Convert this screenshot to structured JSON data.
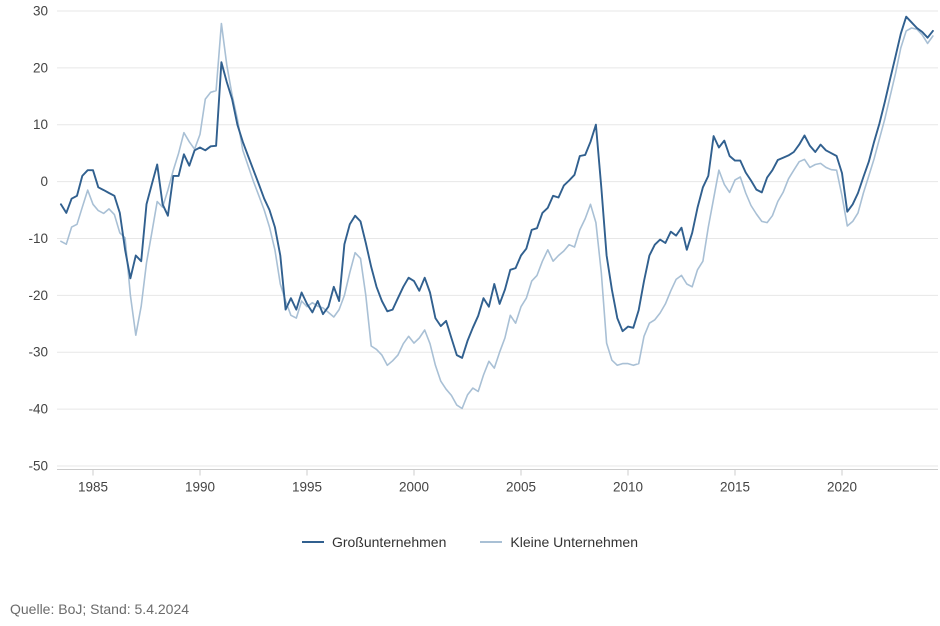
{
  "caption": "Quelle: BoJ; Stand: 5.4.2024",
  "colors": {
    "grid": "#e7e7e7",
    "axis_line": "#cccccc",
    "tick_label": "#444444",
    "legend_text": "#333333",
    "caption_text": "#6b6b6b",
    "background": "#ffffff",
    "series_large": "#31608f",
    "series_small": "#a9c0d5"
  },
  "chart_data": {
    "type": "line",
    "title": "",
    "xlabel": "",
    "ylabel": "",
    "ylim": [
      -50,
      30
    ],
    "xlim": [
      1983.4,
      2024.5
    ],
    "y_ticks": [
      30,
      20,
      10,
      0,
      -10,
      -20,
      -30,
      -40,
      -50
    ],
    "x_ticks": [
      1985,
      1990,
      1995,
      2000,
      2005,
      2010,
      2015,
      2020
    ],
    "grid": "horizontal",
    "legend_position": "bottom-center",
    "x_start": 1983.5,
    "x_step": 0.25,
    "series": [
      {
        "name": "Großunternehmen",
        "color": "#31608f",
        "values": [
          -4,
          -5.5,
          -3,
          -2.5,
          1,
          2,
          2,
          -1,
          -1.5,
          -2,
          -2.5,
          -5.5,
          -12,
          -17,
          -13,
          -14,
          -4,
          -0.5,
          3,
          -4,
          -6,
          1,
          1,
          4.8,
          2.8,
          5.5,
          6,
          5.5,
          6.2,
          6.3,
          21,
          17.5,
          14.5,
          10,
          7,
          4.5,
          2,
          -0.5,
          -3,
          -5,
          -8,
          -13,
          -22.5,
          -20.5,
          -22.5,
          -19.5,
          -21.5,
          -23,
          -21,
          -23.3,
          -22,
          -18.5,
          -21,
          -11,
          -7.5,
          -6,
          -7,
          -10.8,
          -15,
          -18.5,
          -21,
          -22.8,
          -22.5,
          -20.5,
          -18.5,
          -16.9,
          -17.5,
          -19.2,
          -16.9,
          -19.5,
          -24,
          -25.4,
          -24.5,
          -27.5,
          -30.5,
          -31,
          -28,
          -25.7,
          -23.6,
          -20.5,
          -22,
          -18,
          -21.5,
          -19,
          -15.5,
          -15.2,
          -13,
          -11.8,
          -8.5,
          -8.2,
          -5.5,
          -4.6,
          -2.5,
          -2.8,
          -0.7,
          0.2,
          1.2,
          4.5,
          4.7,
          7,
          10,
          -1,
          -13,
          -19,
          -24,
          -26.3,
          -25.5,
          -25.7,
          -22.6,
          -17.5,
          -13,
          -11.1,
          -10.2,
          -10.8,
          -8.8,
          -9.5,
          -8.1,
          -12,
          -9,
          -4.6,
          -1,
          1,
          8,
          6,
          7.2,
          4.5,
          3.7,
          3.7,
          1.6,
          0.2,
          -1.4,
          -1.9,
          0.7,
          2,
          3.8,
          4.2,
          4.6,
          5.2,
          6.5,
          8.1,
          6.3,
          5.2,
          6.5,
          5.5,
          5,
          4.5,
          1.5,
          -5.3,
          -4,
          -2,
          0.8,
          3.5,
          7,
          10.2,
          14,
          18,
          22,
          26,
          29,
          28,
          27,
          26.3,
          25.3,
          26.5
        ]
      },
      {
        "name": "Kleine Unternehmen",
        "color": "#a9c0d5",
        "values": [
          -10.5,
          -11,
          -8,
          -7.5,
          -4.5,
          -1.5,
          -4,
          -5.1,
          -5.6,
          -4.8,
          -5.8,
          -9,
          -9.9,
          -20,
          -27,
          -21.9,
          -14.3,
          -9,
          -3.5,
          -4.5,
          -1.5,
          2,
          5,
          8.6,
          7,
          5.7,
          8.3,
          14.5,
          15.7,
          16,
          27.8,
          20.5,
          15.2,
          11,
          5.5,
          2.8,
          0,
          -2.5,
          -5,
          -8,
          -12,
          -18,
          -21,
          -23.5,
          -24,
          -21,
          -22,
          -21.3,
          -21.9,
          -22.2,
          -23,
          -23.8,
          -22.5,
          -20,
          -16,
          -12.5,
          -13.5,
          -20,
          -28.9,
          -29.5,
          -30.5,
          -32.3,
          -31.5,
          -30.5,
          -28.5,
          -27.2,
          -28.4,
          -27.5,
          -26.1,
          -28.5,
          -32.3,
          -35.1,
          -36.5,
          -37.6,
          -39.3,
          -39.9,
          -37.5,
          -36.3,
          -36.9,
          -34,
          -31.6,
          -32.8,
          -30,
          -27.5,
          -23.5,
          -24.9,
          -22,
          -20.5,
          -17.5,
          -16.5,
          -14,
          -12,
          -14,
          -13,
          -12.2,
          -11.1,
          -11.5,
          -8.5,
          -6.5,
          -4,
          -7.2,
          -16,
          -28.4,
          -31.4,
          -32.3,
          -32,
          -32,
          -32.3,
          -32,
          -27.2,
          -24.9,
          -24.3,
          -23.1,
          -21.5,
          -19.2,
          -17.2,
          -16.5,
          -18,
          -18.5,
          -15.5,
          -14,
          -8,
          -3,
          2,
          -0.5,
          -1.9,
          0.3,
          0.8,
          -2,
          -4.2,
          -5.7,
          -7,
          -7.2,
          -6,
          -3.5,
          -1.9,
          0.5,
          2,
          3.5,
          3.9,
          2.5,
          3,
          3.2,
          2.5,
          2.1,
          2,
          -2.5,
          -7.8,
          -7,
          -5.5,
          -2,
          1,
          4,
          7.5,
          11,
          15,
          19,
          23.5,
          26.5,
          27,
          26.8,
          25.8,
          24.3,
          25.6
        ]
      }
    ]
  },
  "legend": {
    "items_note": "labels bound from chart_data.series names"
  }
}
